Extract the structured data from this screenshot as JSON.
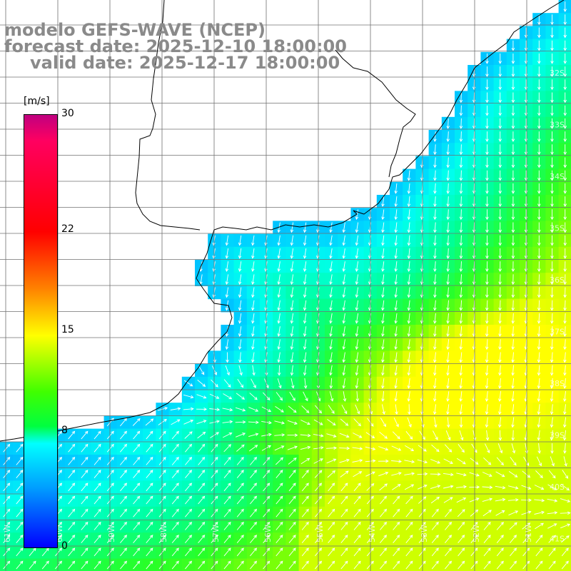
{
  "title": {
    "model": "modelo GEFS-WAVE (NCEP)",
    "forecast": "forecast date: 2025-12-10 18:00:00",
    "valid": "valid date: 2025-12-17 18:00:00"
  },
  "colorbar": {
    "unit": "[m/s]",
    "ticks": [
      "30",
      "22",
      "15",
      "8",
      "0"
    ],
    "tick_values": [
      30,
      22,
      15,
      8,
      0
    ],
    "range": [
      0,
      30
    ],
    "colors": [
      "#0000ff",
      "#00a0ff",
      "#00ffff",
      "#00ff40",
      "#40ff00",
      "#ffff00",
      "#ff8000",
      "#ff0000",
      "#ff0060",
      "#c00080"
    ]
  },
  "axes": {
    "lat_labels": [
      "32S",
      "33S",
      "34S",
      "35S",
      "36S",
      "37S",
      "38S",
      "39S",
      "40S",
      "41S"
    ],
    "lon_labels": [
      "61W",
      "60W",
      "59W",
      "58W",
      "57W",
      "56W",
      "55W",
      "54W",
      "53W",
      "52W",
      "51W"
    ]
  },
  "colors": {
    "land": "#ffffff",
    "grid": "#707070",
    "coast": "#000000",
    "arrow": "#ffffff",
    "title": "#8a8a8a"
  }
}
